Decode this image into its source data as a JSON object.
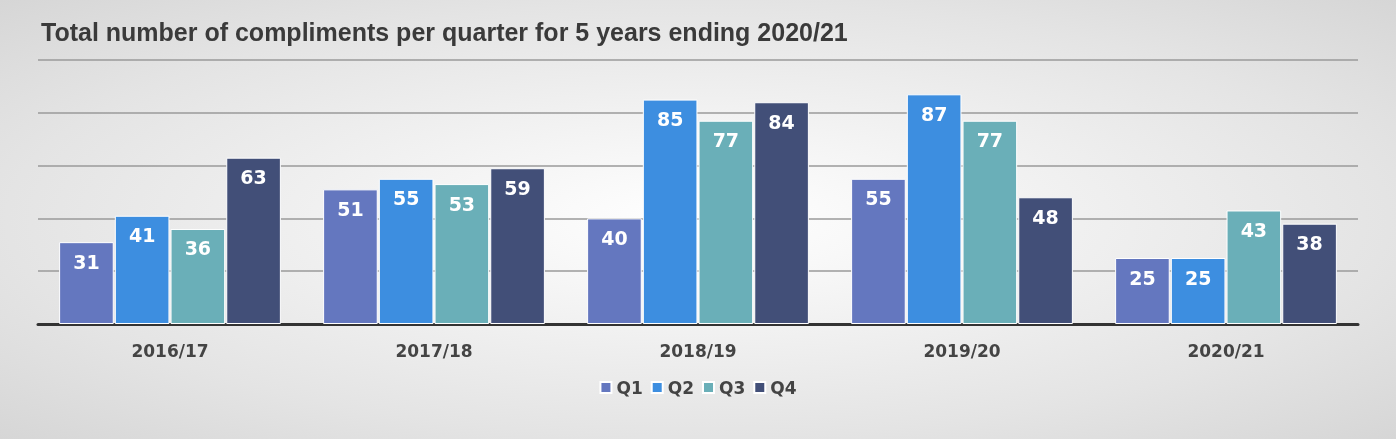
{
  "chart_data": {
    "type": "bar",
    "title": "Total number of compliments per quarter for 5 years ending 2020/21",
    "categories": [
      "2016/17",
      "2017/18",
      "2018/19",
      "2019/20",
      "2020/21"
    ],
    "series": [
      {
        "name": "Q1",
        "color": "#6477bf",
        "values": [
          31,
          51,
          40,
          55,
          25
        ]
      },
      {
        "name": "Q2",
        "color": "#3d8ee0",
        "values": [
          41,
          55,
          85,
          87,
          25
        ]
      },
      {
        "name": "Q3",
        "color": "#6aafb8",
        "values": [
          36,
          53,
          77,
          77,
          43
        ]
      },
      {
        "name": "Q4",
        "color": "#424f78",
        "values": [
          63,
          59,
          84,
          48,
          38
        ]
      }
    ],
    "ylim": [
      0,
      100
    ],
    "yticks": [
      {
        "value": 0,
        "label": null
      },
      {
        "value": 20,
        "label": null
      },
      {
        "value": 40,
        "label": null
      },
      {
        "value": 60,
        "label": null
      },
      {
        "value": 80,
        "label": null
      },
      {
        "value": 100,
        "label": null
      }
    ],
    "tick_labels": "x",
    "grid": "y",
    "legend": "bottom",
    "data_labels": true
  }
}
